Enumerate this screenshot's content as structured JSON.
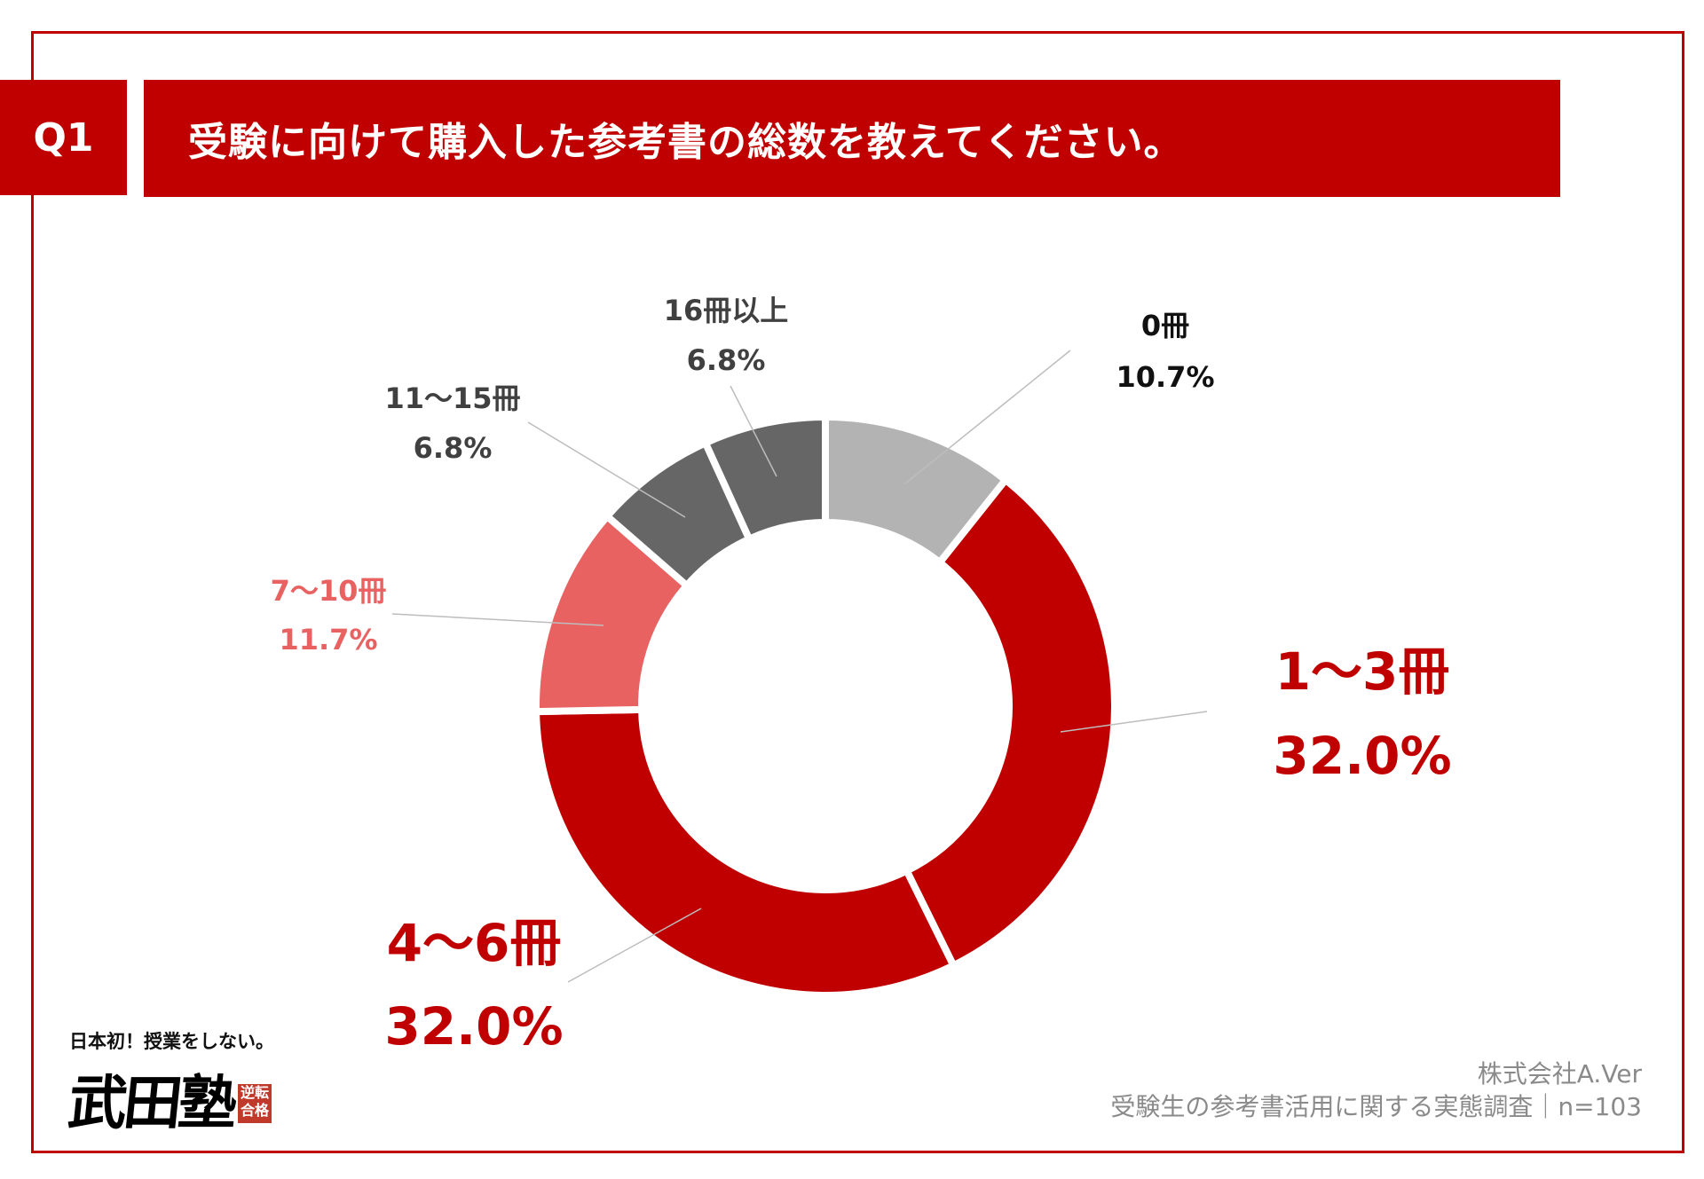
{
  "header": {
    "question_number": "Q1",
    "title": "受験に向けて購入した参考書の総数を教えてください。"
  },
  "chart_data": {
    "type": "pie",
    "subtype": "donut",
    "title": "受験に向けて購入した参考書の総数を教えてください。",
    "categories": [
      "0冊",
      "1〜3冊",
      "4〜6冊",
      "7〜10冊",
      "11〜15冊",
      "16冊以上"
    ],
    "values": [
      10.7,
      32.0,
      32.0,
      11.7,
      6.8,
      6.8
    ],
    "value_labels": [
      "10.7%",
      "32.0%",
      "32.0%",
      "11.7%",
      "6.8%",
      "6.8%"
    ],
    "colors": [
      "#b3b3b3",
      "#c00000",
      "#c00000",
      "#e86262",
      "#666666",
      "#666666"
    ],
    "label_colors": [
      "#111111",
      "#c00000",
      "#c00000",
      "#e86262",
      "#404040",
      "#404040"
    ],
    "start": "top",
    "direction": "clockwise",
    "unit": "%"
  },
  "footer": {
    "company": "株式会社A.Ver",
    "source": "受験生の参考書活用に関する実態調査｜n=103"
  },
  "logo": {
    "tagline": "日本初！授業をしない。",
    "name": "武田塾",
    "stamp": "逆転合格"
  }
}
